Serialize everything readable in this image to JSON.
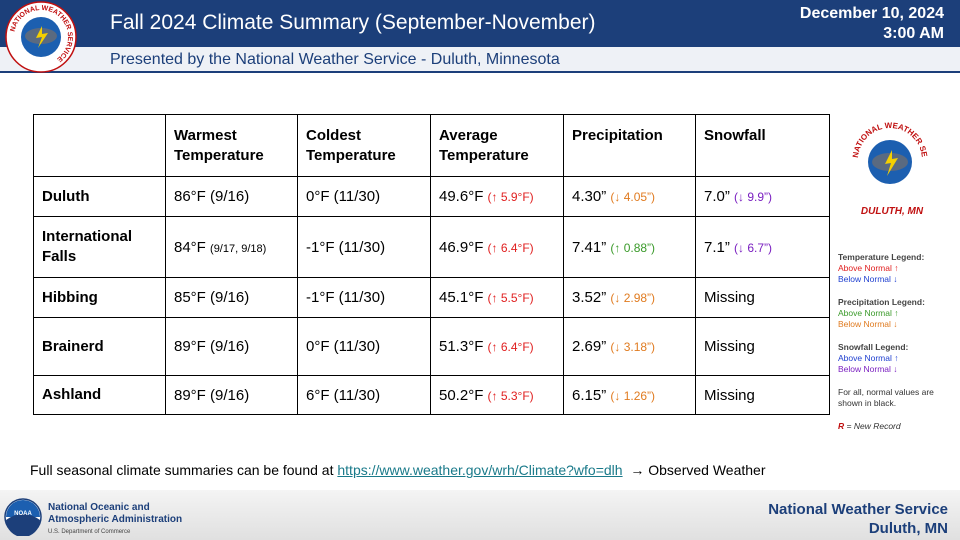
{
  "header": {
    "title": "Fall 2024 Climate Summary (September-November)",
    "subtitle": "Presented by the National Weather Service - Duluth, Minnesota",
    "date": "December 10, 2024",
    "time": "3:00 AM",
    "logo_text": "NATIONAL WEATHER SERVICE"
  },
  "table": {
    "columns": [
      "Warmest Temperature",
      "Coldest Temperature",
      "Average Temperature",
      "Precipitation",
      "Snowfall"
    ],
    "rows": [
      {
        "station": "Duluth",
        "cells": [
          {
            "main": "86°F (9/16)"
          },
          {
            "main": "0°F (11/30)"
          },
          {
            "main": "49.6°F",
            "departure": "(↑ 5.9°F)",
            "departure_color": "#e02020"
          },
          {
            "main": "4.30”",
            "departure": "(↓ 4.05”)",
            "departure_color": "#e07b20"
          },
          {
            "main": "7.0”",
            "departure": "(↓ 9.9”)",
            "departure_color": "#7a1fc0"
          }
        ]
      },
      {
        "station": "International Falls",
        "cells": [
          {
            "main": "84°F",
            "small": "(9/17, 9/18)"
          },
          {
            "main": "-1°F (11/30)"
          },
          {
            "main": "46.9°F",
            "departure": "(↑ 6.4°F)",
            "departure_color": "#e02020"
          },
          {
            "main": "7.41”",
            "departure": "(↑ 0.88”)",
            "departure_color": "#3a9a2a"
          },
          {
            "main": "7.1”",
            "departure": "(↓ 6.7”)",
            "departure_color": "#7a1fc0"
          }
        ]
      },
      {
        "station": "Hibbing",
        "cells": [
          {
            "main": "85°F (9/16)"
          },
          {
            "main": "-1°F (11/30)"
          },
          {
            "main": "45.1°F",
            "departure": "(↑ 5.5°F)",
            "departure_color": "#e02020"
          },
          {
            "main": "3.52”",
            "departure": "(↓ 2.98”)",
            "departure_color": "#e07b20"
          },
          {
            "main": "Missing"
          }
        ]
      },
      {
        "station": "Brainerd",
        "cells": [
          {
            "main": "89°F (9/16)"
          },
          {
            "main": "0°F (11/30)"
          },
          {
            "main": "51.3°F",
            "departure": "(↑ 6.4°F)",
            "departure_color": "#e02020"
          },
          {
            "main": "2.69”",
            "departure": "(↓ 3.18”)",
            "departure_color": "#e07b20"
          },
          {
            "main": "Missing"
          }
        ]
      },
      {
        "station": "Ashland",
        "cells": [
          {
            "main": "89°F (9/16)"
          },
          {
            "main": "6°F (11/30)"
          },
          {
            "main": "50.2°F",
            "departure": "(↑ 5.3°F)",
            "departure_color": "#e02020"
          },
          {
            "main": "6.15”",
            "departure": "(↓ 1.26”)",
            "departure_color": "#e07b20"
          },
          {
            "main": "Missing"
          }
        ]
      }
    ]
  },
  "side_logo": {
    "text": "NATIONAL WEATHER SERVICE",
    "place": "DULUTH, MN"
  },
  "legend": {
    "sections": [
      {
        "title": "Temperature Legend:",
        "items": [
          {
            "text": "Above Normal ↑",
            "color": "#e02020"
          },
          {
            "text": "Below Normal ↓",
            "color": "#2040d0"
          }
        ]
      },
      {
        "title": "Precipitation Legend:",
        "items": [
          {
            "text": "Above Normal ↑",
            "color": "#3a9a2a"
          },
          {
            "text": "Below Normal ↓",
            "color": "#e07b20"
          }
        ]
      },
      {
        "title": "Snowfall Legend:",
        "items": [
          {
            "text": "Above Normal ↑",
            "color": "#2040d0"
          },
          {
            "text": "Below Normal ↓",
            "color": "#7a1fc0"
          }
        ]
      }
    ],
    "note": "For all, normal values are shown in black.",
    "record_key": "R",
    "record_text": "= New Record"
  },
  "footer": {
    "text": "Full seasonal climate summaries can be found at",
    "link": "https://www.weather.gov/wrh/Climate?wfo=dlh",
    "after": "→ Observed Weather",
    "noaa_badge": "NOAA",
    "noaa_line1": "National Oceanic and",
    "noaa_line2": "Atmospheric Administration",
    "noaa_line3": "U.S. Department of Commerce",
    "office1": "National Weather Service",
    "office2": "Duluth, MN"
  }
}
